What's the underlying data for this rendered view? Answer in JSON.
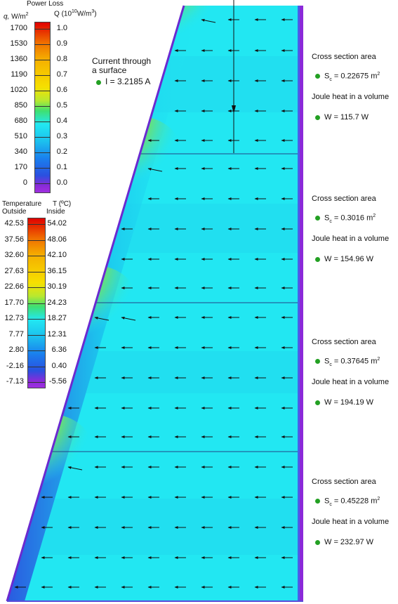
{
  "colors": {
    "field_base": "#22e7f2",
    "field_cyan2": "#1fd0ef",
    "field_blue_edge": "#2a5ae0",
    "field_purple_edge": "#8a2ad9",
    "hot_yellow": "#f3f21a",
    "hot_green": "#9bde3a",
    "divider": "#224488",
    "marker_green": "#23a023"
  },
  "power_legend": {
    "title": "Power Loss",
    "left_header_symbol": "q,",
    "left_header_unit": "W/m",
    "left_header_exp": "2",
    "right_header_symbol": "Q",
    "right_header_unit_open": "(10",
    "right_header_exp1": "10",
    "right_header_unit_mid": "W/m",
    "right_header_exp2": "3",
    "right_header_unit_close": ")",
    "left_ticks": [
      "1700",
      "1530",
      "1360",
      "1190",
      "1020",
      "850",
      "680",
      "510",
      "340",
      "170",
      "0"
    ],
    "right_ticks": [
      "1.0",
      "0.9",
      "0.8",
      "0.7",
      "0.6",
      "0.5",
      "0.4",
      "0.3",
      "0.2",
      "0.1",
      "0.0"
    ]
  },
  "temperature_legend": {
    "title": "Temperature",
    "symbol": "T (ºC)",
    "left_header": "Outside",
    "right_header": "Inside",
    "left_ticks": [
      "42.53",
      "37.56",
      "32.60",
      "27.63",
      "22.66",
      "17.70",
      "12.73",
      "7.77",
      "2.80",
      "-2.16",
      "-7.13"
    ],
    "right_ticks": [
      "54.02",
      "48.06",
      "42.10",
      "36.15",
      "30.19",
      "24.23",
      "18.27",
      "12.31",
      "6.36",
      "0.40",
      "-5.56"
    ]
  },
  "current_annotation": {
    "line1": "Current through",
    "line2": "a surface",
    "value": "I = 3.2185 A"
  },
  "sections": [
    {
      "area_label": "Cross section area",
      "area_value": "= 0.22675 m",
      "area_exp": "2",
      "heat_label": "Joule heat in a volume",
      "heat_value": "W = 115.7 W"
    },
    {
      "area_label": "Cross section area",
      "area_value": "= 0.3016 m",
      "area_exp": "2",
      "heat_label": "Joule heat in a volume",
      "heat_value": "W = 154.96 W"
    },
    {
      "area_label": "Cross section area",
      "area_value": "= 0.37645 m",
      "area_exp": "2",
      "heat_label": "Joule heat in a volume",
      "heat_value": "W = 194.19 W"
    },
    {
      "area_label": "Cross section area",
      "area_value": "= 0.45228 m",
      "area_exp": "2",
      "heat_label": "Joule heat in a volume",
      "heat_value": "W = 232.97 W"
    }
  ],
  "area_symbol": "S",
  "area_symbol_sub": "c"
}
